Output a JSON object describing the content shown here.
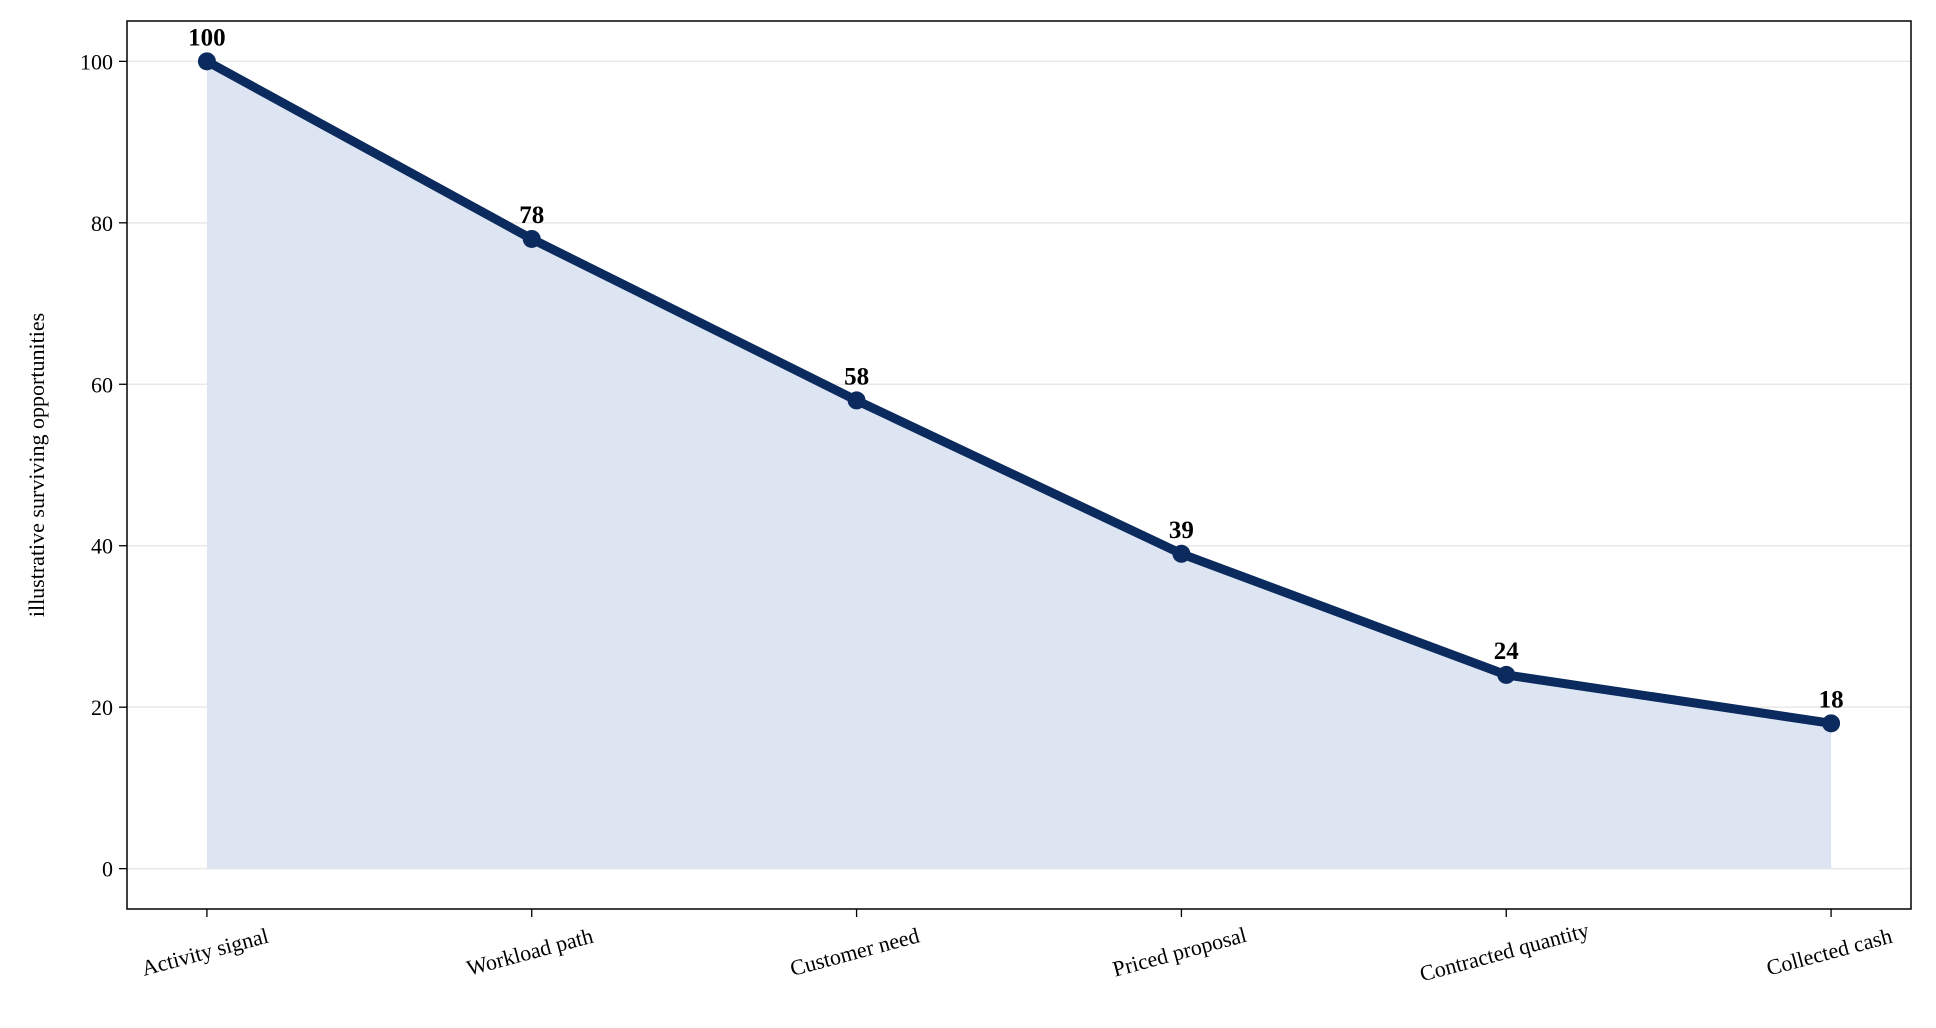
{
  "chart_data": {
    "type": "line",
    "y_label": "illustrative surviving opportunities",
    "categories": [
      "Activity signal",
      "Workload path",
      "Customer need",
      "Priced proposal",
      "Contracted quantity",
      "Collected cash"
    ],
    "values": [
      100,
      78,
      58,
      39,
      24,
      18
    ],
    "color": "#0b2a5e",
    "fill_color": "#dce5f1",
    "ylim": [
      -5,
      105
    ],
    "yticks": [
      0,
      20,
      40,
      60,
      80,
      100
    ],
    "grid": true
  }
}
